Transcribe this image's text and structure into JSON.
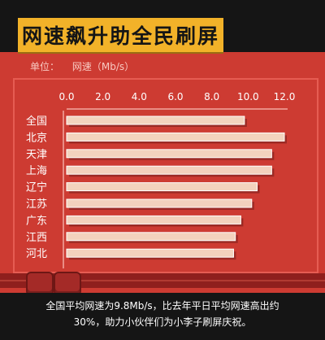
{
  "title": "网速飙升助全民刷屏",
  "unit": {
    "label": "单位：",
    "value": "网速（Mb/s）"
  },
  "caption": {
    "line1": "全国平均网速为9.8Mb/s，比去年平日平均网速高出约",
    "line2": "30%，助力小伙伴们为小李子刷屏庆祝。"
  },
  "colors": {
    "bar": "#f3d2bd",
    "bar_shadow": "#9c2a24",
    "bg": "#cd3b32",
    "accent": "#f2b229",
    "text": "#ffffff",
    "dark": "#151515"
  },
  "chart_data": {
    "type": "bar",
    "orientation": "horizontal",
    "categories": [
      "全国",
      "北京",
      "天津",
      "上海",
      "辽宁",
      "江苏",
      "广东",
      "江西",
      "河北"
    ],
    "values": [
      9.8,
      12.0,
      11.3,
      11.3,
      10.5,
      10.2,
      9.6,
      9.3,
      9.2
    ],
    "x_ticks": [
      "0.0",
      "2.0",
      "4.0",
      "6.0",
      "8.0",
      "10.0",
      "12.0"
    ],
    "xlim": [
      0,
      12
    ],
    "xlabel": "",
    "ylabel": "",
    "legend": "none",
    "grid": false
  }
}
